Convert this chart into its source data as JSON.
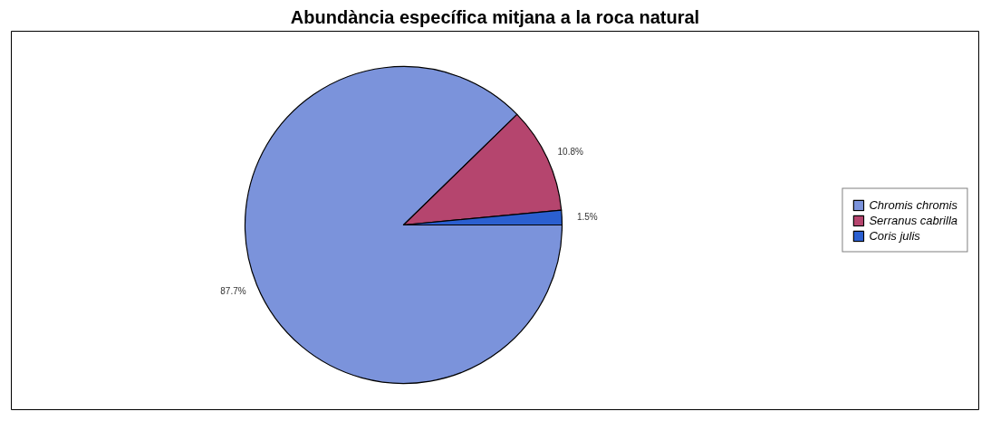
{
  "chart_data": {
    "type": "pie",
    "title": "Abundància específica mitjana a la roca natural",
    "categories": [
      "Chromis chromis",
      "Serranus cabrilla",
      "Coris julis"
    ],
    "values": [
      87.7,
      10.8,
      1.5
    ],
    "value_labels": [
      "87.7%",
      "10.8%",
      "1.5%"
    ],
    "colors": [
      "#7b93db",
      "#b5456e",
      "#2b5fd0"
    ],
    "legend": "right"
  }
}
